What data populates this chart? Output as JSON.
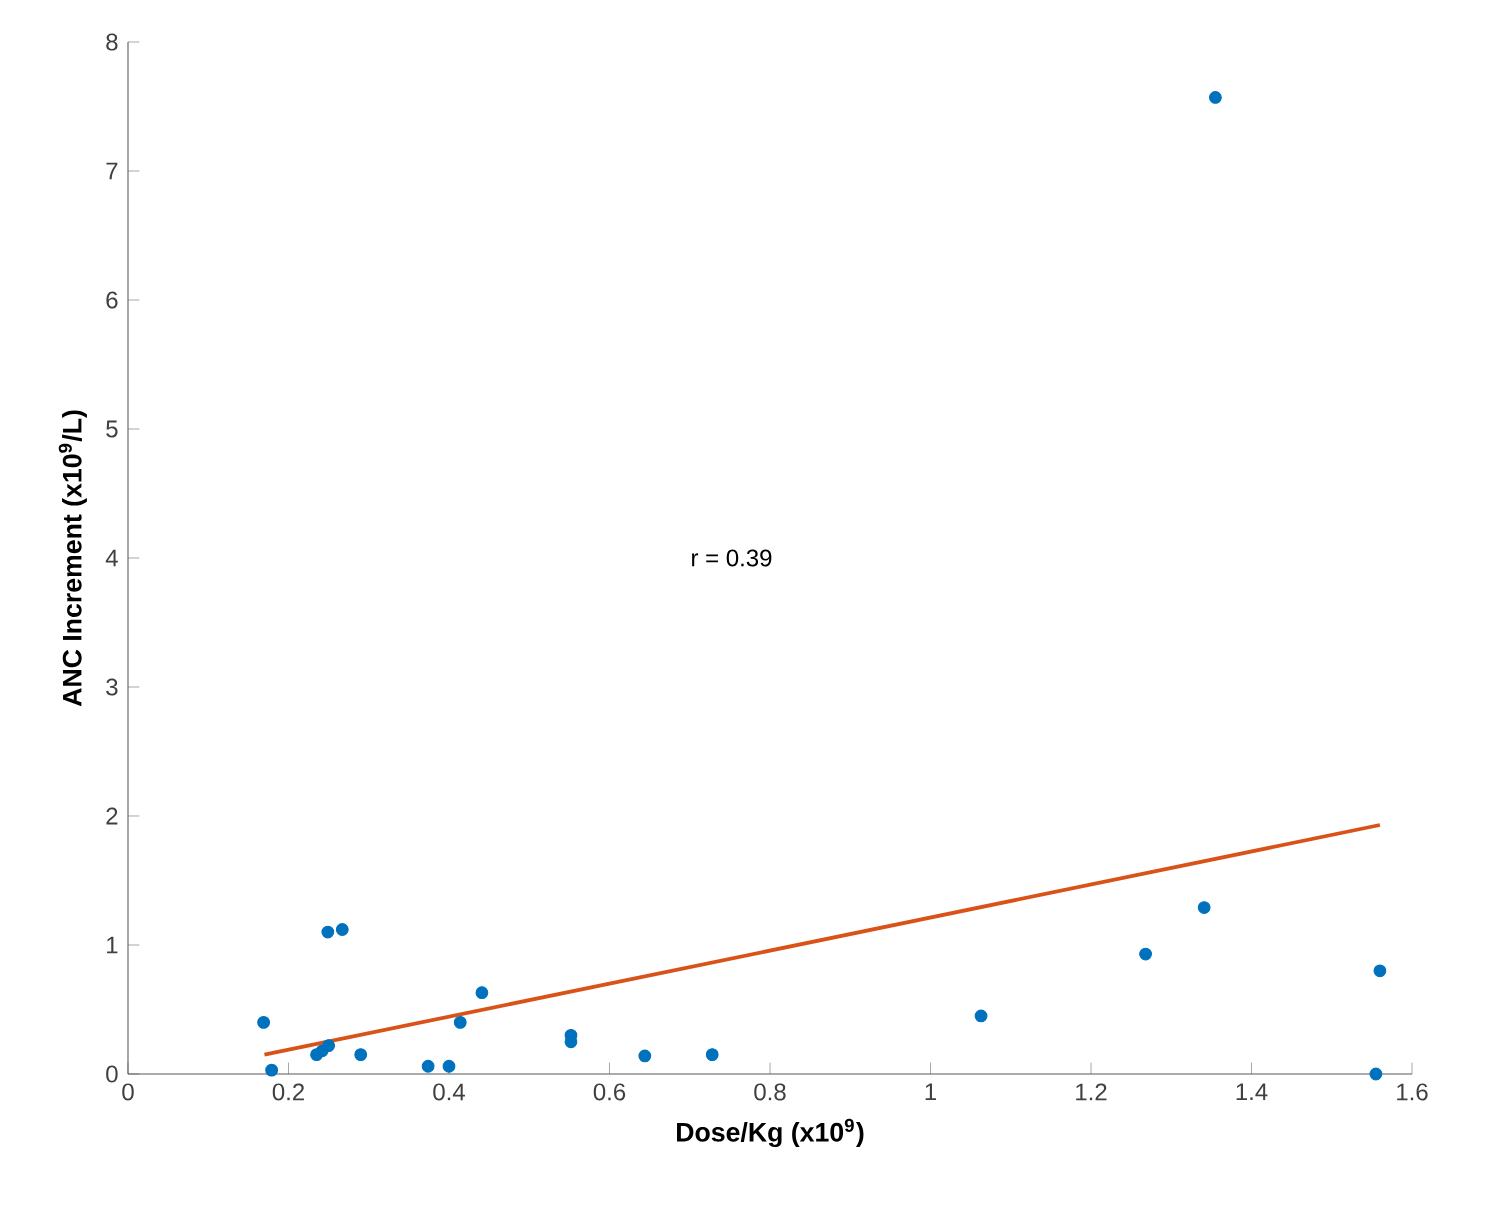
{
  "chart_data": {
    "type": "scatter",
    "xlabel": "Dose/Kg (x10$^{9}$)",
    "ylabel": "ANC Increment (x10$^{9}$/L)",
    "annotations": [
      "r = 0.39"
    ],
    "series": [
      {
        "type": "scatter",
        "color": "#0072bd",
        "x": [
          0.169,
          0.179,
          0.249,
          0.267,
          0.235,
          0.242,
          0.25,
          0.29,
          0.374,
          0.4,
          0.414,
          0.441,
          0.552,
          0.552,
          0.644,
          0.728,
          1.063,
          1.268,
          1.341,
          1.56,
          1.555,
          1.355
        ],
        "values": [
          0.4,
          0.03,
          1.1,
          1.12,
          0.15,
          0.18,
          0.22,
          0.15,
          0.06,
          0.06,
          0.4,
          0.63,
          0.3,
          0.25,
          0.14,
          0.15,
          0.45,
          0.93,
          1.29,
          0.8,
          0.0,
          7.57
        ]
      },
      {
        "type": "line",
        "color": "#d95319",
        "line_style": "solid",
        "marker": "none",
        "x": [
          0.17,
          1.56
        ],
        "values": [
          0.15,
          1.93
        ]
      }
    ],
    "xlim": [
      0,
      1.6
    ],
    "ylim": [
      0,
      8
    ],
    "xticks": [
      0,
      0.2,
      0.4,
      0.6,
      0.8,
      1,
      1.2,
      1.4,
      1.6
    ],
    "yticks": [
      0,
      1,
      2,
      3,
      4,
      5,
      6,
      7,
      8
    ],
    "grid": false,
    "marker": "circle"
  }
}
